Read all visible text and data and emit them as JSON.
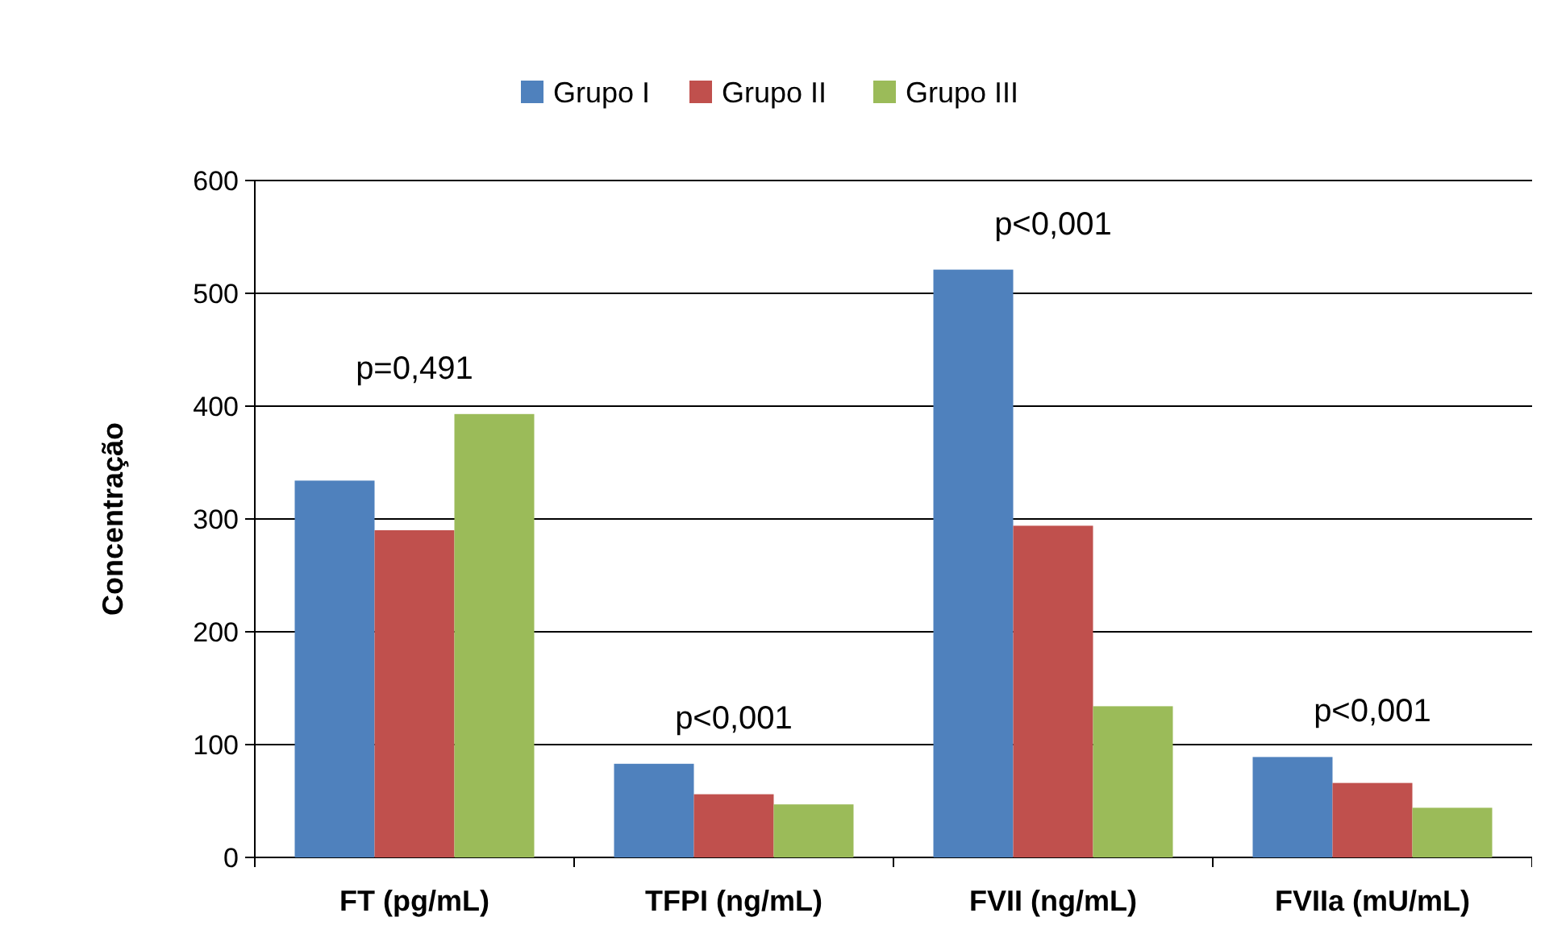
{
  "chart_data": {
    "type": "bar",
    "ylabel": "Concentração",
    "categories": [
      "FT (pg/mL)",
      "TFPI (ng/mL)",
      "FVII (ng/mL)",
      "FVIIa (mU/mL)"
    ],
    "series": [
      {
        "name": "Grupo I",
        "color": "#4f81bd",
        "values": [
          334,
          83,
          521,
          89
        ]
      },
      {
        "name": "Grupo II",
        "color": "#c0504d",
        "values": [
          290,
          56,
          294,
          66
        ]
      },
      {
        "name": "Grupo III",
        "color": "#9bbb59",
        "values": [
          393,
          47,
          134,
          44
        ]
      }
    ],
    "ylim": [
      0,
      600
    ],
    "yticks": [
      0,
      100,
      200,
      300,
      400,
      500,
      600
    ],
    "grid": "y",
    "legend": "top",
    "annotations": [
      "p=0,491",
      "p<0,001",
      "p<0,001",
      "p<0,001"
    ]
  }
}
